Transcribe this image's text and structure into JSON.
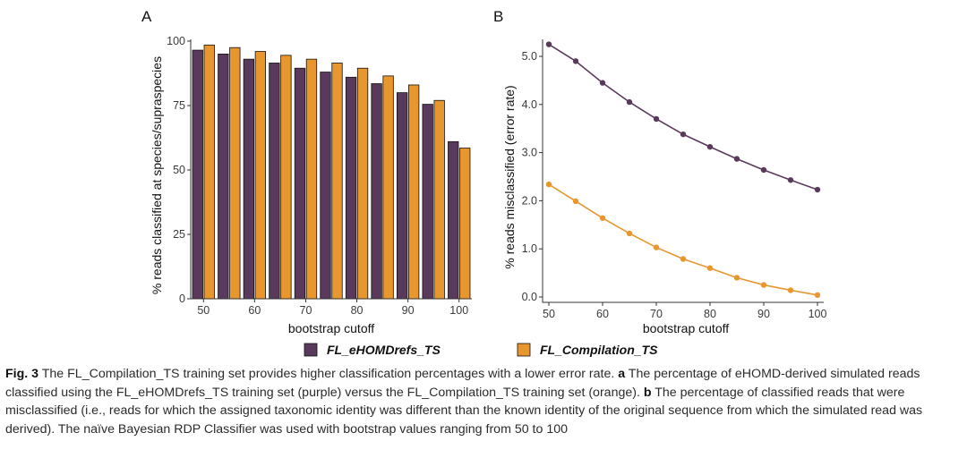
{
  "colors": {
    "purple": "#5a3a5c",
    "orange": "#e8962e",
    "axis": "#333333",
    "bar_outline": "#111111"
  },
  "legend": {
    "items": [
      {
        "label": "FL_eHOMDrefs_TS",
        "color": "#5a3a5c"
      },
      {
        "label": "FL_Compilation_TS",
        "color": "#e8962e"
      }
    ]
  },
  "chart_data": [
    {
      "panel": "A",
      "type": "bar",
      "xlabel": "bootstrap cutoff",
      "ylabel": "% reads classified at species/supraspecies",
      "ylim": [
        0,
        100
      ],
      "yticks": [
        0,
        25,
        50,
        75,
        100
      ],
      "x": [
        50,
        55,
        60,
        65,
        70,
        75,
        80,
        85,
        90,
        95,
        100
      ],
      "xticks": [
        50,
        60,
        70,
        80,
        90,
        100
      ],
      "grid": false,
      "series": [
        {
          "name": "FL_eHOMDrefs_TS",
          "values": [
            96.5,
            95.0,
            93.0,
            91.5,
            89.5,
            88.0,
            86.0,
            83.5,
            80.0,
            75.5,
            61.0
          ]
        },
        {
          "name": "FL_Compilation_TS",
          "values": [
            98.5,
            97.5,
            96.0,
            94.5,
            93.0,
            91.5,
            89.5,
            86.5,
            83.0,
            77.0,
            58.5
          ]
        }
      ]
    },
    {
      "panel": "B",
      "type": "line",
      "xlabel": "bootstrap cutoff",
      "ylabel": "% reads misclassified (error rate)",
      "ylim": [
        0,
        5.3
      ],
      "yticks": [
        "0.0",
        "1.0",
        "2.0",
        "3.0",
        "4.0",
        "5.0"
      ],
      "x": [
        50,
        55,
        60,
        65,
        70,
        75,
        80,
        85,
        90,
        95,
        100
      ],
      "xticks": [
        50,
        60,
        70,
        80,
        90,
        100
      ],
      "grid": false,
      "series": [
        {
          "name": "FL_eHOMDrefs_TS",
          "values": [
            5.25,
            4.9,
            4.45,
            4.05,
            3.7,
            3.38,
            3.12,
            2.87,
            2.64,
            2.43,
            2.23
          ]
        },
        {
          "name": "FL_Compilation_TS",
          "values": [
            2.34,
            1.99,
            1.64,
            1.32,
            1.03,
            0.79,
            0.6,
            0.4,
            0.25,
            0.14,
            0.04
          ]
        }
      ]
    }
  ],
  "caption": {
    "fig_label": "Fig. 3",
    "p1": " The FL_Compilation_TS training set provides higher classification percentages with a lower error rate. ",
    "a": "a",
    "p2": " The percentage of eHOMD-derived simulated reads classified using the FL_eHOMDrefs_TS training set (purple) versus the FL_Compilation_TS training set (orange). ",
    "b": "b",
    "p3": " The percentage of classified reads that were misclassified (i.e., reads for which the assigned taxonomic identity was different than the known identity of the original sequence from which the simulated read was derived). The naïve Bayesian RDP Classifier was used with bootstrap values ranging from 50 to 100"
  }
}
